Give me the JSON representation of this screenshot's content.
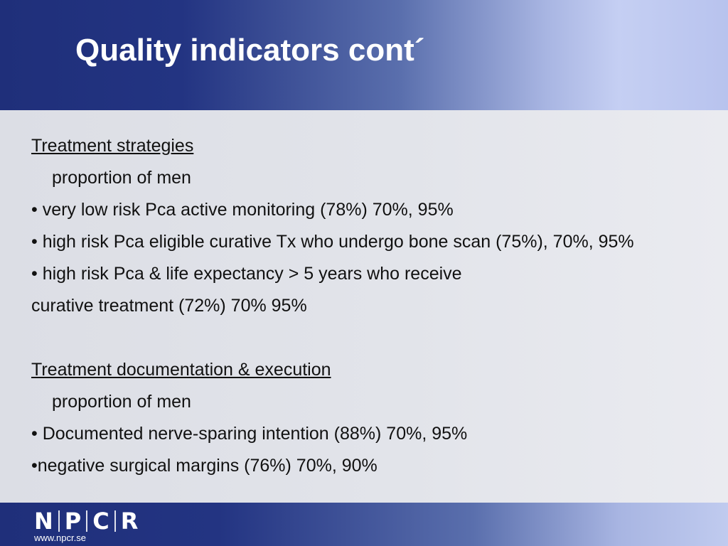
{
  "slide": {
    "title": "Quality indicators cont´"
  },
  "sections": [
    {
      "heading": "Treatment strategies",
      "subheading": "proportion of men",
      "bullets": [
        "• very low risk Pca active monitoring  (78%) 70%, 95%",
        "• high risk Pca eligible  curative Tx who undergo bone scan (75%), 70%, 95%",
        "• high risk Pca & life expectancy > 5 years who receive"
      ],
      "continuation": "curative treatment (72%) 70% 95%"
    },
    {
      "heading": "Treatment documentation & execution",
      "subheading": "proportion of men",
      "bullets": [
        "• Documented nerve-sparing intention (88%) 70%, 95%",
        "•negative surgical margins (76%) 70%, 90%"
      ]
    }
  ],
  "footer": {
    "logo_letters": [
      "N",
      "P",
      "C",
      "R"
    ],
    "url": "www.npcr.se"
  }
}
